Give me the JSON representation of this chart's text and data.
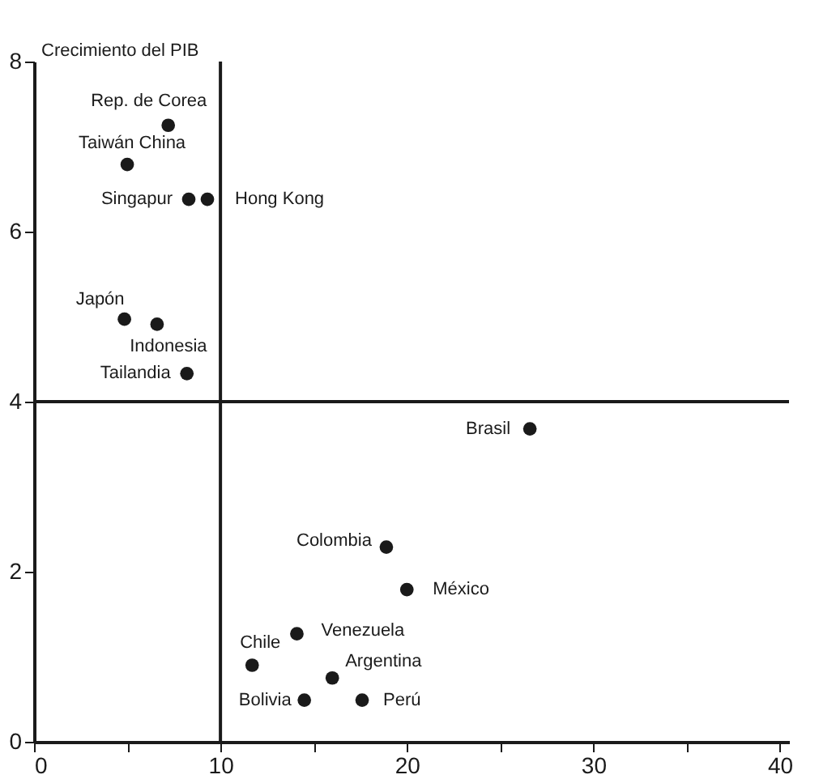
{
  "chart_data": {
    "type": "scatter",
    "ylabel": "Crecimiento del PIB",
    "x": [
      7.2,
      5.0,
      8.3,
      9.3,
      4.85,
      6.6,
      8.2,
      26.6,
      18.9,
      20.0,
      14.1,
      11.7,
      16.0,
      14.5,
      17.6
    ],
    "series": [
      {
        "color": "#1a1a1a",
        "values": [
          7.25,
          6.79,
          6.38,
          6.38,
          4.97,
          4.91,
          4.33,
          3.68,
          2.29,
          1.79,
          1.27,
          0.9,
          0.75,
          0.49,
          0.49
        ]
      }
    ],
    "annotations": [
      {
        "text": "Rep. de Corea",
        "x": 7.2,
        "y": 7.25
      },
      {
        "text": "Taiwán  China",
        "x": 5.0,
        "y": 6.79
      },
      {
        "text": "Singapur",
        "x": 8.3,
        "y": 6.38
      },
      {
        "text": "Hong Kong",
        "x": 9.3,
        "y": 6.38
      },
      {
        "text": "Japón",
        "x": 4.85,
        "y": 4.97
      },
      {
        "text": "Indonesia",
        "x": 6.6,
        "y": 4.91
      },
      {
        "text": "Tailandia",
        "x": 8.2,
        "y": 4.33
      },
      {
        "text": "Brasil",
        "x": 26.6,
        "y": 3.68
      },
      {
        "text": "Colombia",
        "x": 18.9,
        "y": 2.29
      },
      {
        "text": "México",
        "x": 20.0,
        "y": 1.79
      },
      {
        "text": "Venezuela",
        "x": 14.1,
        "y": 1.27
      },
      {
        "text": "Chile",
        "x": 11.7,
        "y": 0.9
      },
      {
        "text": "Argentina",
        "x": 16.0,
        "y": 0.75
      },
      {
        "text": "Bolivia",
        "x": 14.5,
        "y": 0.49
      },
      {
        "text": "Perú",
        "x": 17.6,
        "y": 0.49
      }
    ],
    "xlim": [
      0,
      40.5
    ],
    "ylim": [
      0,
      8
    ],
    "xticks": [
      0,
      {
        "value": 5,
        "label": null
      },
      10,
      {
        "value": 15,
        "label": null
      },
      20,
      {
        "value": 25,
        "label": null
      },
      30,
      {
        "value": 35,
        "label": null
      },
      40
    ],
    "yticks": [
      0,
      2,
      4,
      6,
      8
    ],
    "ref_lines": [
      {
        "axis": "x",
        "value": 10,
        "color": "#1a1a1a"
      },
      {
        "axis": "y",
        "value": 4,
        "color": "#1a1a1a"
      }
    ],
    "marker": "circle",
    "grid": false
  }
}
